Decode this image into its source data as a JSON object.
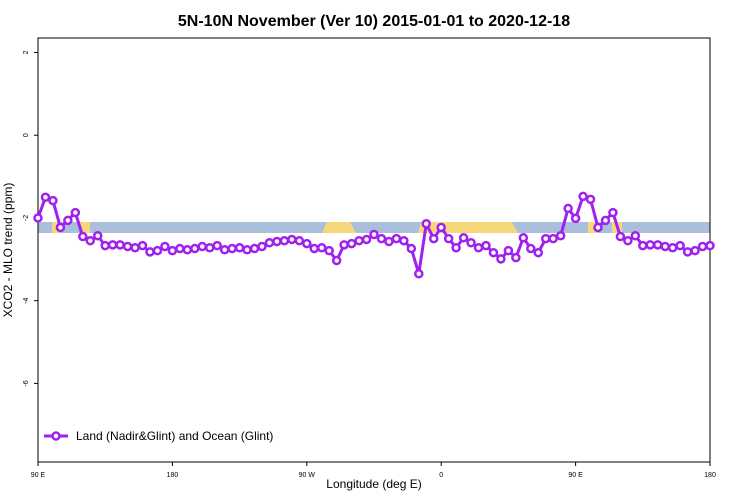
{
  "chart_data": {
    "type": "line",
    "title": "5N-10N November (Ver 10)   2015-01-01 to 2020-12-18",
    "xlabel": "Longitude (deg E)",
    "ylabel": "XCO2 - MLO trend (ppm)",
    "xlim": [
      90,
      540
    ],
    "ylim": [
      -7.9,
      2.35
    ],
    "xticks": [
      {
        "value": 90,
        "label": "90 E"
      },
      180,
      {
        "value": 270,
        "label": "90 W"
      },
      {
        "value": 360,
        "label": "0"
      },
      {
        "value": 450,
        "label": "90 E"
      },
      {
        "value": 540,
        "label": "180"
      }
    ],
    "yticks": [
      2,
      0,
      -2,
      -4,
      -6
    ],
    "legend": "bottom-left",
    "x": [
      90,
      95,
      100,
      105,
      110,
      115,
      120,
      125,
      130,
      135,
      140,
      145,
      150,
      155,
      160,
      165,
      170,
      175,
      180,
      185,
      190,
      195,
      200,
      205,
      210,
      215,
      220,
      225,
      230,
      235,
      240,
      245,
      250,
      255,
      260,
      265,
      270,
      275,
      280,
      285,
      290,
      295,
      300,
      305,
      310,
      315,
      320,
      325,
      330,
      335,
      340,
      345,
      350,
      355,
      360,
      365,
      370,
      375,
      380,
      385,
      390,
      395,
      400,
      405,
      410,
      415,
      420,
      425,
      430,
      435,
      440,
      445,
      450,
      455,
      460,
      465,
      470,
      475,
      480,
      485,
      490,
      495,
      500,
      505,
      510,
      515,
      520,
      525,
      530,
      535,
      540
    ],
    "series": [
      {
        "name": "Land (Nadir&Glint) and Ocean (Glint)",
        "color": "#a020f0",
        "values": [
          -2.0,
          -1.5,
          -1.58,
          -2.23,
          -2.06,
          -1.87,
          -2.45,
          -2.55,
          -2.43,
          -2.67,
          -2.65,
          -2.65,
          -2.69,
          -2.72,
          -2.67,
          -2.82,
          -2.79,
          -2.69,
          -2.79,
          -2.74,
          -2.77,
          -2.74,
          -2.69,
          -2.72,
          -2.67,
          -2.77,
          -2.74,
          -2.72,
          -2.77,
          -2.74,
          -2.69,
          -2.6,
          -2.57,
          -2.55,
          -2.52,
          -2.55,
          -2.62,
          -2.74,
          -2.72,
          -2.79,
          -3.03,
          -2.65,
          -2.62,
          -2.55,
          -2.52,
          -2.4,
          -2.5,
          -2.57,
          -2.5,
          -2.55,
          -2.74,
          -3.35,
          -2.14,
          -2.5,
          -2.23,
          -2.5,
          -2.72,
          -2.48,
          -2.6,
          -2.72,
          -2.67,
          -2.84,
          -2.99,
          -2.79,
          -2.96,
          -2.48,
          -2.74,
          -2.84,
          -2.5,
          -2.5,
          -2.43,
          -1.77,
          -2.01,
          -1.48,
          -1.55,
          -2.23,
          -2.06,
          -1.87,
          -2.45,
          -2.55,
          -2.43,
          -2.67,
          -2.65,
          -2.65,
          -2.69,
          -2.72,
          -2.67,
          -2.82,
          -2.79,
          -2.69,
          -2.67
        ]
      }
    ]
  }
}
